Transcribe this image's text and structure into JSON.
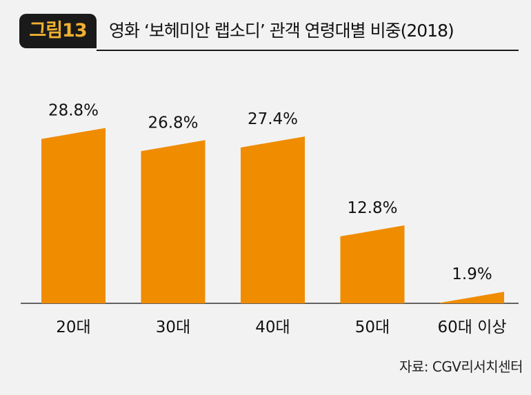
{
  "figure": {
    "label": "그림13",
    "title": "영화 ‘보헤미안 랩소디’ 관객 연령대별 비중(2018)"
  },
  "source": "자료: CGV리서치센터",
  "colors": {
    "bar": "#ef8c00",
    "badge_bg": "#1a1a1a",
    "badge_text": "#f0b030",
    "axis": "#333333"
  },
  "chart_data": {
    "type": "bar",
    "categories": [
      "20대",
      "30대",
      "40대",
      "50대",
      "60대 이상"
    ],
    "values": [
      28.8,
      26.8,
      27.4,
      12.8,
      1.9
    ],
    "data_labels": [
      "28.8%",
      "26.8%",
      "27.4%",
      "12.8%",
      "1.9%"
    ],
    "ylim": [
      0,
      30
    ],
    "grid": false,
    "legend": "none"
  }
}
